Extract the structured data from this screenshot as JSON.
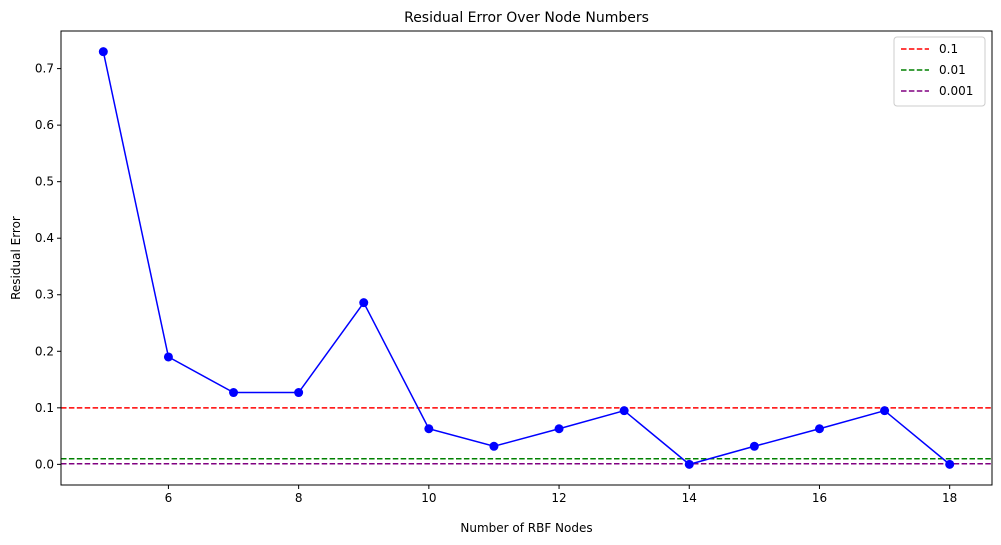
{
  "chart_data": {
    "type": "line",
    "title": "Residual Error Over Node Numbers",
    "xlabel": "Number of RBF Nodes",
    "ylabel": "Residual Error",
    "xlim": [
      4.35,
      18.65
    ],
    "ylim": [
      -0.0365,
      0.7665
    ],
    "xticks": [
      6,
      8,
      10,
      12,
      14,
      16,
      18
    ],
    "yticks": [
      0.0,
      0.1,
      0.2,
      0.3,
      0.4,
      0.5,
      0.6,
      0.7
    ],
    "grid": false,
    "legend_position": "top-right",
    "series": [
      {
        "color": "#0000ff",
        "marker": "circle",
        "x": [
          5,
          6,
          7,
          8,
          9,
          10,
          11,
          12,
          13,
          14,
          15,
          16,
          17,
          18
        ],
        "y": [
          0.73,
          0.19,
          0.127,
          0.127,
          0.286,
          0.063,
          0.032,
          0.063,
          0.095,
          0.0,
          0.032,
          0.063,
          0.095,
          0.0
        ]
      }
    ],
    "reference_lines": [
      {
        "name": "0.1",
        "y": 0.1,
        "color": "#ff0000",
        "style": "dashed"
      },
      {
        "name": "0.01",
        "y": 0.01,
        "color": "#008000",
        "style": "dashed"
      },
      {
        "name": "0.001",
        "y": 0.001,
        "color": "#800080",
        "style": "dashed"
      }
    ]
  }
}
